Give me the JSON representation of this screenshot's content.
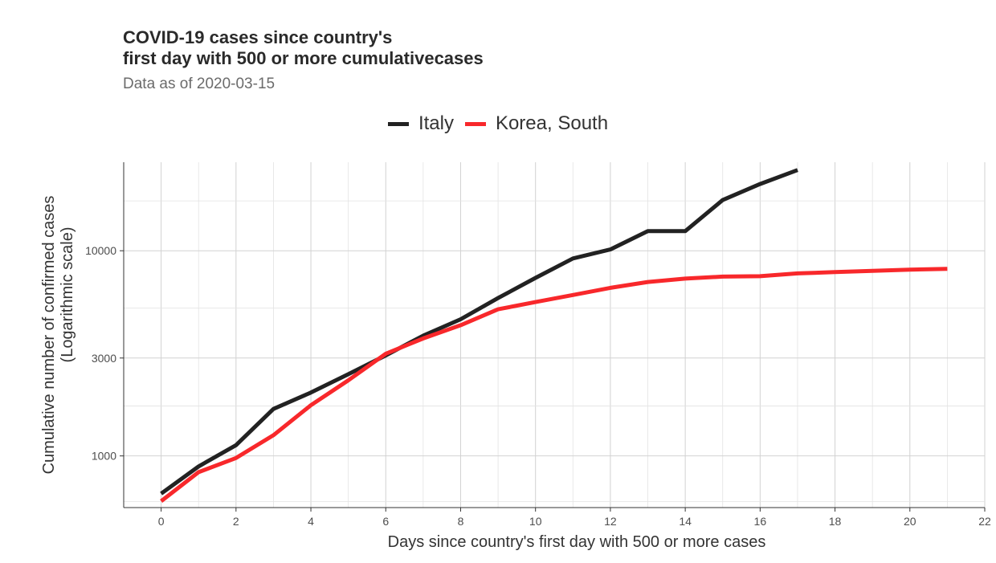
{
  "chart_data": {
    "type": "line",
    "title_line1": "COVID-19 cases since country's",
    "title_line2": "first day with 500 or more cumulativecases",
    "subtitle": "Data as of 2020-03-15",
    "xlabel": "Days since country's first day with 500 or more cases",
    "ylabel_line1": "Cumulative number of confirmed cases",
    "ylabel_line2": "(Logarithmic scale)",
    "y_scale": "log",
    "xlim": [
      -1,
      22
    ],
    "ylim": [
      560,
      27000
    ],
    "x_ticks": [
      0,
      2,
      4,
      6,
      8,
      10,
      12,
      14,
      16,
      18,
      20,
      22
    ],
    "x_tick_labels": [
      "0",
      "2",
      "4",
      "6",
      "8",
      "10",
      "12",
      "14",
      "16",
      "18",
      "20",
      "22"
    ],
    "y_ticks": [
      1000,
      3000,
      10000
    ],
    "y_tick_labels": [
      "1000",
      "3000",
      "10000"
    ],
    "y_minor_gridlines": [
      600,
      1750,
      5250,
      17500
    ],
    "grid": true,
    "legend_position": "top",
    "series": [
      {
        "name": "Italy",
        "color": "#222222",
        "x": [
          0,
          1,
          2,
          3,
          4,
          5,
          6,
          7,
          8,
          9,
          10,
          11,
          12,
          13,
          14,
          15,
          16,
          17
        ],
        "y": [
          655,
          888,
          1128,
          1694,
          2036,
          2502,
          3089,
          3858,
          4636,
          5883,
          7375,
          9172,
          10149,
          12462,
          12462,
          17660,
          21157,
          24747
        ]
      },
      {
        "name": "Korea, South",
        "color": "#f8282b",
        "x": [
          0,
          1,
          2,
          3,
          4,
          5,
          6,
          7,
          8,
          9,
          10,
          11,
          12,
          13,
          14,
          15,
          16,
          17,
          18,
          19,
          20,
          21
        ],
        "y": [
          602,
          833,
          977,
          1261,
          1766,
          2337,
          3150,
          3736,
          4335,
          5186,
          5621,
          6088,
          6593,
          7041,
          7314,
          7478,
          7513,
          7755,
          7869,
          7979,
          8086,
          8162
        ]
      }
    ]
  }
}
